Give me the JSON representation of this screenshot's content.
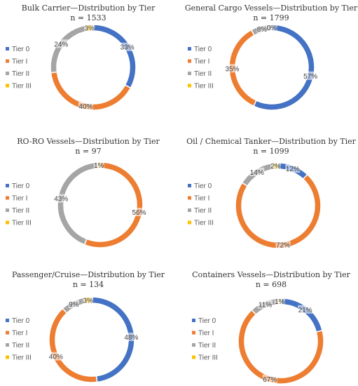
{
  "tier_colors": {
    "Tier 0": "#4472C4",
    "Tier I": "#ED7D31",
    "Tier II": "#A5A5A5",
    "Tier III": "#FFC000"
  },
  "chart_data": [
    {
      "type": "pie",
      "style": "donut",
      "title": "Bulk Carrier—Distribution by Tier",
      "subtitle": "n = 1533",
      "legend_position": "left",
      "categories": [
        "Tier 0",
        "Tier I",
        "Tier II",
        "Tier III"
      ],
      "values": [
        33,
        40,
        24,
        3
      ],
      "labels": [
        "33%",
        "40%",
        "24%",
        "3%"
      ]
    },
    {
      "type": "pie",
      "style": "donut",
      "title": "General Cargo Vessels—Distribution by Tier",
      "subtitle": "n = 1799",
      "legend_position": "left",
      "categories": [
        "Tier 0",
        "Tier I",
        "Tier II",
        "Tier III"
      ],
      "values": [
        57,
        35,
        8,
        0
      ],
      "labels": [
        "57%",
        "35%",
        "8%",
        "0%"
      ]
    },
    {
      "type": "pie",
      "style": "donut",
      "title": "RO-RO Vessels—Distribution by Tier",
      "subtitle": "n = 97",
      "legend_position": "left",
      "categories": [
        "Tier 0",
        "Tier I",
        "Tier II",
        "Tier III"
      ],
      "values": [
        0,
        56,
        43,
        1
      ],
      "labels": [
        "",
        "56%",
        "43%",
        "1%"
      ]
    },
    {
      "type": "pie",
      "style": "donut",
      "title": "Oil / Chemical Tanker—Distribution by Tier",
      "subtitle": "n = 1099",
      "legend_position": "left",
      "categories": [
        "Tier 0",
        "Tier I",
        "Tier II",
        "Tier III"
      ],
      "values": [
        12,
        72,
        14,
        2
      ],
      "labels": [
        "12%",
        "72%",
        "14%",
        "2%"
      ]
    },
    {
      "type": "pie",
      "style": "donut",
      "title": "Passenger/Cruise—Distribution by Tier",
      "subtitle": "n = 134",
      "legend_position": "left",
      "categories": [
        "Tier 0",
        "Tier I",
        "Tier II",
        "Tier III"
      ],
      "values": [
        48,
        40,
        9,
        3
      ],
      "labels": [
        "48%",
        "40%",
        "9%",
        "3%"
      ]
    },
    {
      "type": "pie",
      "style": "donut",
      "title": "Containers Vessels—Distribution by Tier",
      "subtitle": "n = 698",
      "legend_position": "left",
      "categories": [
        "Tier 0",
        "Tier I",
        "Tier II",
        "Tier III"
      ],
      "values": [
        21,
        67,
        11,
        1
      ],
      "labels": [
        "21%",
        "67%",
        "11%",
        "1%"
      ]
    }
  ]
}
